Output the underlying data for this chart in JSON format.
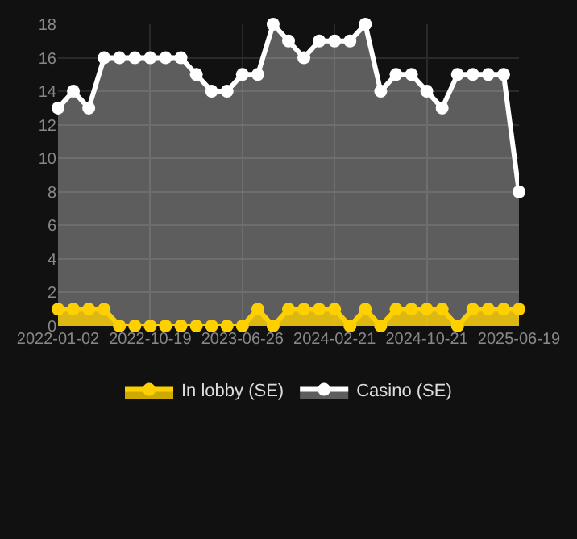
{
  "chart_data": {
    "type": "area",
    "categories": [
      "2022-01-02",
      null,
      null,
      null,
      null,
      null,
      "2022-10-19",
      null,
      null,
      null,
      null,
      null,
      "2023-06-26",
      null,
      null,
      null,
      null,
      null,
      "2024-02-21",
      null,
      null,
      null,
      null,
      null,
      "2024-10-21",
      null,
      null,
      null,
      null,
      null,
      "2025-06-19"
    ],
    "series": [
      {
        "name": "In lobby (SE)",
        "color": "#ffd000",
        "values": [
          1,
          1,
          1,
          1,
          0,
          0,
          0,
          0,
          0,
          0,
          0,
          0,
          0,
          1,
          0,
          1,
          1,
          1,
          1,
          0,
          1,
          0,
          1,
          1,
          1,
          1,
          0,
          1,
          1,
          1,
          1
        ]
      },
      {
        "name": "Casino (SE)",
        "color": "#ffffff",
        "values": [
          13,
          14,
          13,
          16,
          16,
          16,
          16,
          16,
          16,
          15,
          14,
          14,
          15,
          15,
          18,
          17,
          16,
          17,
          17,
          17,
          18,
          14,
          15,
          15,
          14,
          13,
          15,
          15,
          15,
          15,
          8
        ]
      }
    ],
    "ylim": [
      0,
      18
    ],
    "yticks": [
      0,
      2,
      4,
      6,
      8,
      10,
      12,
      14,
      16,
      18
    ],
    "grid": true,
    "legend": "bottom",
    "marker": "circle",
    "line_style": "solid"
  }
}
